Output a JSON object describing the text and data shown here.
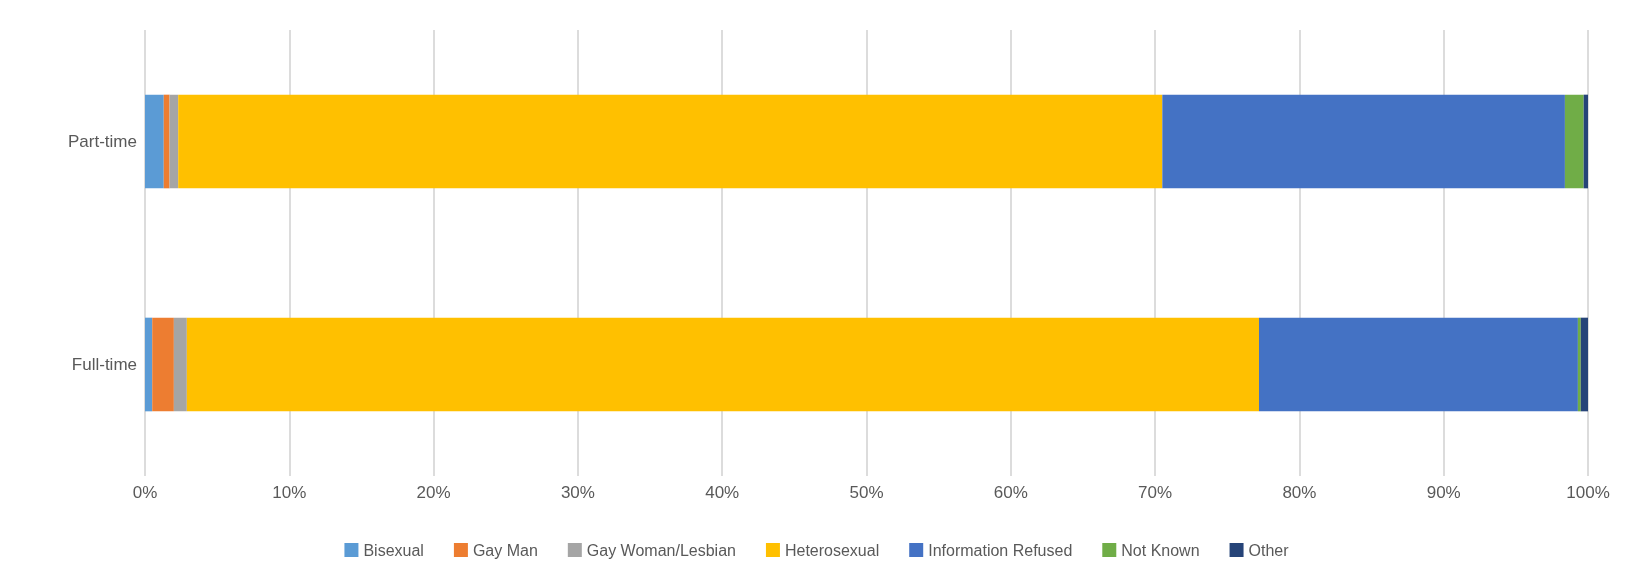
{
  "chart_data": {
    "type": "bar",
    "orientation": "horizontal",
    "stacked": true,
    "categories": [
      "Part-time",
      "Full-time"
    ],
    "series": [
      {
        "name": "Bisexual",
        "color": "#5b9bd5",
        "values": [
          1.3,
          0.5
        ]
      },
      {
        "name": "Gay Man",
        "color": "#ed7d31",
        "values": [
          0.4,
          1.5
        ]
      },
      {
        "name": "Gay Woman/Lesbian",
        "color": "#a5a5a5",
        "values": [
          0.6,
          0.9
        ]
      },
      {
        "name": "Heterosexual",
        "color": "#ffc000",
        "values": [
          68.2,
          74.3
        ]
      },
      {
        "name": "Information Refused",
        "color": "#4472c4",
        "values": [
          27.9,
          22.1
        ]
      },
      {
        "name": "Not Known",
        "color": "#70ad47",
        "values": [
          1.3,
          0.2
        ]
      },
      {
        "name": "Other",
        "color": "#264478",
        "values": [
          0.3,
          0.5
        ]
      }
    ],
    "xlim": [
      0,
      100
    ],
    "xticks": [
      {
        "value": 0,
        "label": "0%"
      },
      {
        "value": 10,
        "label": "10%"
      },
      {
        "value": 20,
        "label": "20%"
      },
      {
        "value": 30,
        "label": "30%"
      },
      {
        "value": 40,
        "label": "40%"
      },
      {
        "value": 50,
        "label": "50%"
      },
      {
        "value": 60,
        "label": "60%"
      },
      {
        "value": 70,
        "label": "70%"
      },
      {
        "value": 80,
        "label": "80%"
      },
      {
        "value": 90,
        "label": "90%"
      },
      {
        "value": 100,
        "label": "100%"
      }
    ],
    "grid": "x",
    "legend": "bottom"
  }
}
